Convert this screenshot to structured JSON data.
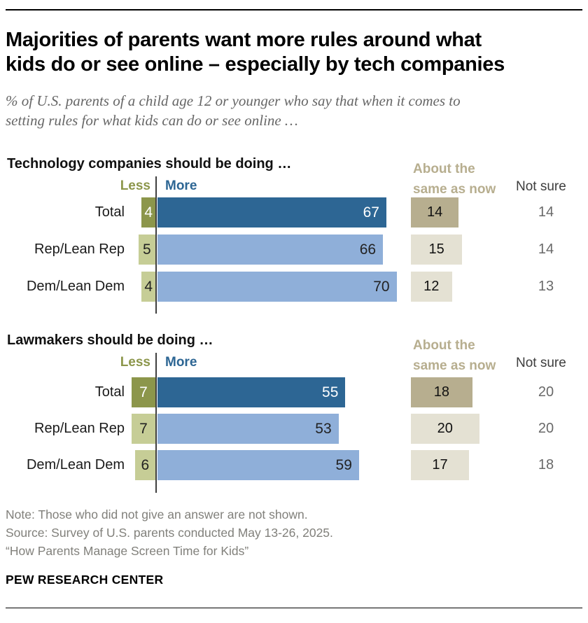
{
  "header": {
    "title_line1": "Majorities of parents want more rules around what",
    "title_line2": "kids do or see online – especially by tech companies",
    "subtitle_line1": "% of U.S. parents of a child age 12 or younger who say that when it comes to",
    "subtitle_line2": "setting rules for what kids can do or see online …"
  },
  "legend": {
    "less": "Less",
    "more": "More",
    "same_line1": "About the",
    "same_line2": "same as now",
    "not_sure": "Not sure"
  },
  "chart_data": [
    {
      "type": "bar",
      "title": "Technology companies should be doing …",
      "categories": [
        "Total",
        "Rep/Lean Rep",
        "Dem/Lean Dem"
      ],
      "series": [
        {
          "name": "Less",
          "values": [
            4,
            5,
            4
          ]
        },
        {
          "name": "More",
          "values": [
            67,
            66,
            70
          ]
        },
        {
          "name": "About the same as now",
          "values": [
            14,
            15,
            12
          ]
        },
        {
          "name": "Not sure",
          "values": [
            14,
            14,
            13
          ]
        }
      ],
      "value_unit": "% of parents",
      "layout": "diverging horizontal bars, Less left of axis, More right of axis"
    },
    {
      "type": "bar",
      "title": "Lawmakers should be doing …",
      "categories": [
        "Total",
        "Rep/Lean Rep",
        "Dem/Lean Dem"
      ],
      "series": [
        {
          "name": "Less",
          "values": [
            7,
            7,
            6
          ]
        },
        {
          "name": "More",
          "values": [
            55,
            53,
            59
          ]
        },
        {
          "name": "About the same as now",
          "values": [
            18,
            20,
            17
          ]
        },
        {
          "name": "Not sure",
          "values": [
            20,
            20,
            18
          ]
        }
      ],
      "value_unit": "% of parents",
      "layout": "diverging horizontal bars, Less left of axis, More right of axis"
    }
  ],
  "footer": {
    "note": "Note: Those who did not give an answer are not shown.",
    "source": "Source: Survey of U.S. parents conducted May 13-26, 2025.",
    "report": "“How Parents Manage Screen Time for Kids”",
    "brand": "PEW RESEARCH CENTER"
  },
  "colors": {
    "dark-blue": "#2d6694",
    "light-blue": "#8fafd9",
    "dark-olive": "#8c964b",
    "light-olive": "#c6cd96",
    "dark-tan": "#b7ae8f",
    "light-tan": "#e4e1d3",
    "tan-label": "#b7ae8f",
    "axis": "#3f3f3f",
    "not-sure-header": "#3d3d3d",
    "not-sure-value": "#696969",
    "footer-text": "#81807b",
    "subtitle-text": "#666666"
  }
}
